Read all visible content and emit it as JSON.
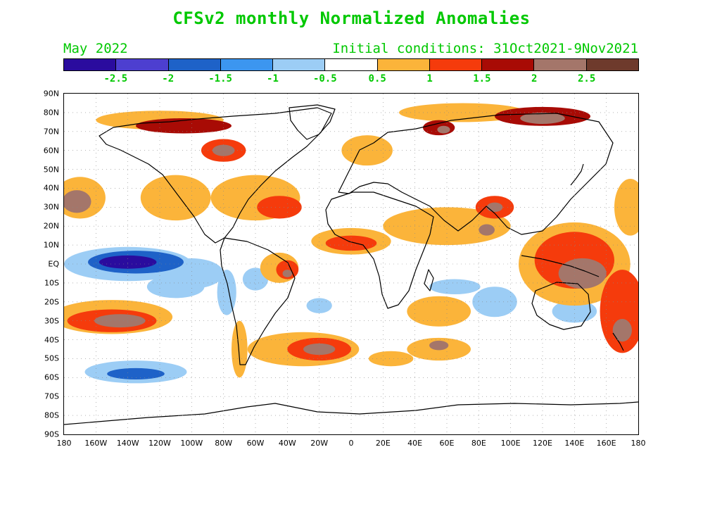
{
  "title": "CFSv2 monthly Normalized Anomalies",
  "target_month": "May 2022",
  "initial_conditions": "Initial conditions: 31Oct2021-9Nov2021",
  "colorbar": {
    "colors": [
      "#2a0c9e",
      "#4d3fd0",
      "#1e62c8",
      "#3c96f0",
      "#9ccdf5",
      "#ffffff",
      "#fbb43a",
      "#f53b0c",
      "#a80b05",
      "#a4766a",
      "#6e3a2c"
    ],
    "labels": [
      "-2.5",
      "-2",
      "-1.5",
      "-1",
      "-0.5",
      "0.5",
      "1",
      "1.5",
      "2",
      "2.5"
    ]
  },
  "axes": {
    "lat_labels": [
      "90N",
      "80N",
      "70N",
      "60N",
      "50N",
      "40N",
      "30N",
      "20N",
      "10N",
      "EQ",
      "10S",
      "20S",
      "30S",
      "40S",
      "50S",
      "60S",
      "70S",
      "80S",
      "90S"
    ],
    "lon_labels": [
      "180",
      "160W",
      "140W",
      "120W",
      "100W",
      "80W",
      "60W",
      "40W",
      "20W",
      "0",
      "20E",
      "40E",
      "60E",
      "80E",
      "100E",
      "120E",
      "140E",
      "160E",
      "180"
    ]
  },
  "map_data": {
    "type": "contour-map",
    "variable": "Normalized Anomalies",
    "lon_range": [
      -180,
      180
    ],
    "lat_range": [
      -90,
      90
    ],
    "blobs": [
      {
        "lon": -140,
        "lat": 0,
        "rx": 40,
        "ry": 9,
        "level": -1
      },
      {
        "lon": -135,
        "lat": 1,
        "rx": 30,
        "ry": 6,
        "level": -2
      },
      {
        "lon": -140,
        "lat": 1,
        "rx": 18,
        "ry": 3.5,
        "level": -3
      },
      {
        "lon": -100,
        "lat": -5,
        "rx": 20,
        "ry": 8,
        "level": -1
      },
      {
        "lon": -110,
        "lat": -12,
        "rx": 18,
        "ry": 6,
        "level": -1
      },
      {
        "lon": -135,
        "lat": -57,
        "rx": 32,
        "ry": 6,
        "level": -1
      },
      {
        "lon": -135,
        "lat": -58,
        "rx": 18,
        "ry": 3,
        "level": -2
      },
      {
        "lon": -20,
        "lat": -22,
        "rx": 8,
        "ry": 4,
        "level": -1
      },
      {
        "lon": 90,
        "lat": -20,
        "rx": 14,
        "ry": 8,
        "level": -1
      },
      {
        "lon": 65,
        "lat": -12,
        "rx": 16,
        "ry": 4,
        "level": -1
      },
      {
        "lon": -60,
        "lat": -8,
        "rx": 8,
        "ry": 6,
        "level": -1
      },
      {
        "lon": -78,
        "lat": -15,
        "rx": 6,
        "ry": 12,
        "level": -1
      },
      {
        "lon": 140,
        "lat": -25,
        "rx": 14,
        "ry": 6,
        "level": -1
      },
      {
        "lon": -150,
        "lat": -28,
        "rx": 38,
        "ry": 9,
        "level": 1
      },
      {
        "lon": -150,
        "lat": -30,
        "rx": 28,
        "ry": 6,
        "level": 2
      },
      {
        "lon": -145,
        "lat": -30,
        "rx": 16,
        "ry": 3.5,
        "level": 3
      },
      {
        "lon": -170,
        "lat": 35,
        "rx": 16,
        "ry": 11,
        "level": 1
      },
      {
        "lon": -172,
        "lat": 33,
        "rx": 9,
        "ry": 6,
        "level": 3
      },
      {
        "lon": -120,
        "lat": 76,
        "rx": 40,
        "ry": 5,
        "level": 1
      },
      {
        "lon": -105,
        "lat": 73,
        "rx": 30,
        "ry": 4,
        "level": 2
      },
      {
        "lon": -80,
        "lat": 60,
        "rx": 14,
        "ry": 6,
        "level": 2
      },
      {
        "lon": -80,
        "lat": 60,
        "rx": 7,
        "ry": 3,
        "level": 3
      },
      {
        "lon": -110,
        "lat": 35,
        "rx": 22,
        "ry": 12,
        "level": 1
      },
      {
        "lon": -60,
        "lat": 35,
        "rx": 28,
        "ry": 12,
        "level": 1
      },
      {
        "lon": -45,
        "lat": 30,
        "rx": 14,
        "ry": 6,
        "level": 2
      },
      {
        "lon": 10,
        "lat": 60,
        "rx": 16,
        "ry": 8,
        "level": 1
      },
      {
        "lon": 70,
        "lat": 80,
        "rx": 40,
        "ry": 5,
        "level": 1
      },
      {
        "lon": 120,
        "lat": 78,
        "rx": 30,
        "ry": 5,
        "level": 2
      },
      {
        "lon": 120,
        "lat": 77,
        "rx": 14,
        "ry": 3,
        "level": 3
      },
      {
        "lon": 55,
        "lat": 72,
        "rx": 10,
        "ry": 4,
        "level": 2
      },
      {
        "lon": 58,
        "lat": 71,
        "rx": 4,
        "ry": 2,
        "level": 3
      },
      {
        "lon": 60,
        "lat": 20,
        "rx": 40,
        "ry": 10,
        "level": 1
      },
      {
        "lon": 90,
        "lat": 30,
        "rx": 12,
        "ry": 6,
        "level": 2
      },
      {
        "lon": 90,
        "lat": 30,
        "rx": 5,
        "ry": 2.5,
        "level": 3
      },
      {
        "lon": 85,
        "lat": 18,
        "rx": 5,
        "ry": 3,
        "level": 3
      },
      {
        "lon": 0,
        "lat": 12,
        "rx": 25,
        "ry": 7,
        "level": 1
      },
      {
        "lon": 0,
        "lat": 11,
        "rx": 16,
        "ry": 4,
        "level": 2
      },
      {
        "lon": -45,
        "lat": -2,
        "rx": 12,
        "ry": 8,
        "level": 1
      },
      {
        "lon": -40,
        "lat": -3,
        "rx": 7,
        "ry": 5,
        "level": 2
      },
      {
        "lon": -40,
        "lat": -5,
        "rx": 3,
        "ry": 2,
        "level": 3
      },
      {
        "lon": 140,
        "lat": 0,
        "rx": 35,
        "ry": 22,
        "level": 1
      },
      {
        "lon": 140,
        "lat": 2,
        "rx": 25,
        "ry": 15,
        "level": 2
      },
      {
        "lon": 145,
        "lat": -5,
        "rx": 15,
        "ry": 8,
        "level": 3
      },
      {
        "lon": 170,
        "lat": -25,
        "rx": 14,
        "ry": 22,
        "level": 2
      },
      {
        "lon": 170,
        "lat": -35,
        "rx": 6,
        "ry": 6,
        "level": 3
      },
      {
        "lon": 175,
        "lat": 30,
        "rx": 10,
        "ry": 15,
        "level": 1
      },
      {
        "lon": -30,
        "lat": -45,
        "rx": 35,
        "ry": 9,
        "level": 1
      },
      {
        "lon": -20,
        "lat": -45,
        "rx": 20,
        "ry": 6,
        "level": 2
      },
      {
        "lon": -20,
        "lat": -45,
        "rx": 10,
        "ry": 3,
        "level": 3
      },
      {
        "lon": 25,
        "lat": -50,
        "rx": 14,
        "ry": 4,
        "level": 1
      },
      {
        "lon": 55,
        "lat": -45,
        "rx": 20,
        "ry": 6,
        "level": 1
      },
      {
        "lon": 55,
        "lat": -43,
        "rx": 6,
        "ry": 2.5,
        "level": 3
      },
      {
        "lon": 55,
        "lat": -25,
        "rx": 20,
        "ry": 8,
        "level": 1
      },
      {
        "lon": -70,
        "lat": -45,
        "rx": 5,
        "ry": 15,
        "level": 1
      }
    ]
  }
}
